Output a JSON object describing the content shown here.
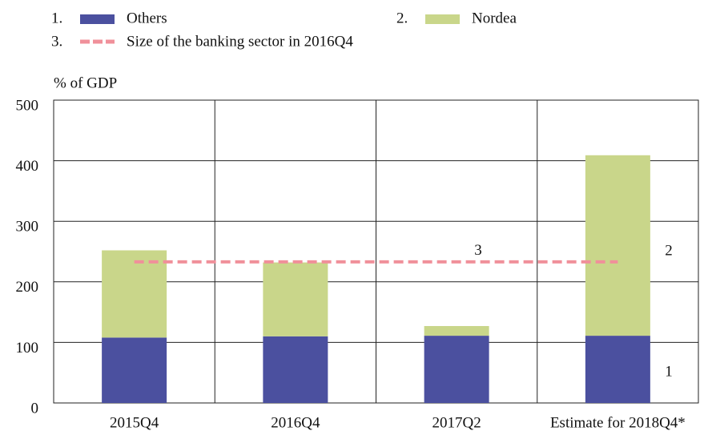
{
  "chart_data": {
    "type": "stacked_bar",
    "y_label": "% of GDP",
    "categories": [
      "2015Q4",
      "2016Q4",
      "2017Q2",
      "Estimate for 2018Q4*"
    ],
    "series": [
      {
        "name": "Others",
        "color": "#4b509f",
        "values": [
          108,
          110,
          111,
          111
        ],
        "legend_number": "1.",
        "annotation": "1"
      },
      {
        "name": "Nordea",
        "color": "#c9d68a",
        "values": [
          144,
          122,
          16,
          298
        ],
        "legend_number": "2.",
        "annotation": "2"
      }
    ],
    "reference_line": {
      "name": "Size of the banking sector in 2016Q4",
      "value": 233,
      "color": "#f0909a",
      "legend_number": "3.",
      "annotation": "3"
    },
    "ylim": [
      0,
      500
    ],
    "yticks": [
      0,
      100,
      200,
      300,
      400,
      500
    ],
    "grid": true
  }
}
